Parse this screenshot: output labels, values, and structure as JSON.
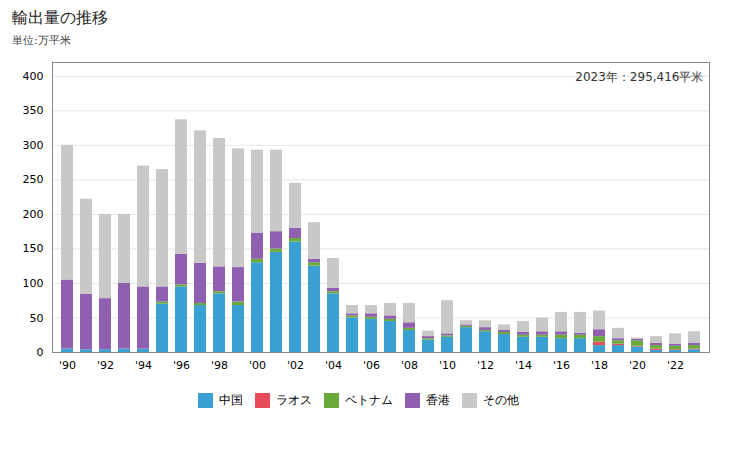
{
  "chart_data": {
    "type": "bar",
    "title": "輸出量の推移",
    "y_label": "単位:万平米",
    "annotation": "2023年：295,416平米",
    "categories": [
      "'90",
      null,
      "'92",
      null,
      "'94",
      null,
      "'96",
      null,
      "'98",
      null,
      "'00",
      null,
      "'02",
      null,
      "'04",
      null,
      "'06",
      null,
      "'08",
      null,
      "'10",
      null,
      "'12",
      null,
      "'14",
      null,
      "'16",
      null,
      "'18",
      null,
      "'20",
      null,
      "'22",
      null
    ],
    "series": [
      {
        "name": "中国",
        "color": "#3a9fd1",
        "values": [
          5,
          4,
          4,
          5,
          5,
          70,
          95,
          68,
          85,
          68,
          130,
          145,
          160,
          125,
          85,
          50,
          48,
          45,
          32,
          18,
          22,
          36,
          30,
          26,
          22,
          22,
          20,
          20,
          10,
          10,
          8,
          3,
          3,
          4
        ]
      },
      {
        "name": "ラオス",
        "color": "#e84c5a",
        "values": [
          0,
          0,
          0,
          0,
          0,
          0,
          0,
          0,
          0,
          0,
          0,
          0,
          0,
          0,
          0,
          0,
          0,
          0,
          0,
          0,
          0,
          0,
          0,
          0,
          0,
          0,
          0,
          0,
          5,
          2,
          1,
          2,
          1,
          1
        ]
      },
      {
        "name": "ベトナム",
        "color": "#6aaa3a",
        "values": [
          0,
          0,
          0,
          0,
          0,
          3,
          3,
          3,
          3,
          5,
          5,
          5,
          5,
          5,
          3,
          3,
          3,
          3,
          3,
          2,
          2,
          2,
          2,
          3,
          3,
          3,
          5,
          5,
          8,
          5,
          8,
          5,
          5,
          5
        ]
      },
      {
        "name": "香港",
        "color": "#9060b0",
        "values": [
          100,
          80,
          74,
          95,
          90,
          22,
          44,
          58,
          36,
          50,
          38,
          25,
          15,
          5,
          5,
          3,
          5,
          5,
          8,
          3,
          3,
          2,
          4,
          3,
          4,
          5,
          5,
          3,
          10,
          3,
          2,
          3,
          3,
          3
        ]
      },
      {
        "name": "その他",
        "color": "#c8c8c8",
        "values": [
          195,
          138,
          122,
          100,
          175,
          170,
          195,
          192,
          186,
          172,
          120,
          118,
          65,
          53,
          43,
          12,
          12,
          18,
          28,
          8,
          48,
          6,
          10,
          8,
          16,
          20,
          28,
          30,
          27,
          15,
          2,
          10,
          15,
          17
        ]
      }
    ],
    "stacked": true,
    "ylim": [
      0,
      420
    ],
    "yticks": [
      0,
      50,
      100,
      150,
      200,
      250,
      300,
      350,
      400
    ],
    "grid": true,
    "legend": "bottom"
  }
}
